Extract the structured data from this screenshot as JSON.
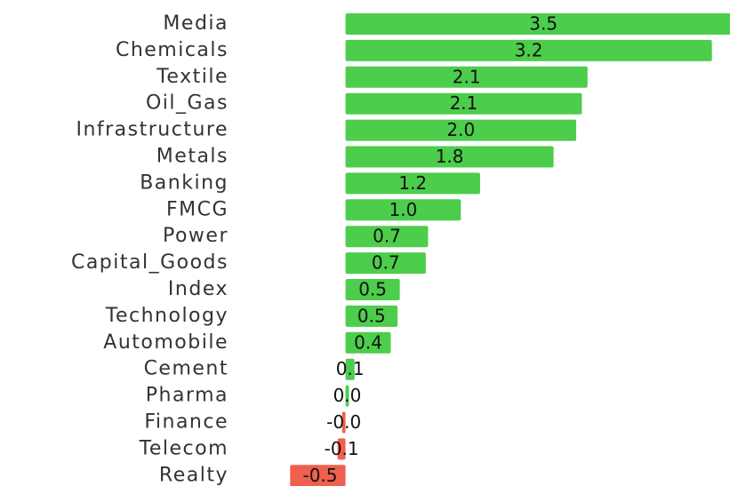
{
  "chart_data": {
    "type": "barh",
    "categories": [
      "Media",
      "Chemicals",
      "Textile",
      "Oil_Gas",
      "Infrastructure",
      "Metals",
      "Banking",
      "FMCG",
      "Power",
      "Capital_Goods",
      "Index",
      "Technology",
      "Automobile",
      "Cement",
      "Pharma",
      "Finance",
      "Telecom",
      "Realty"
    ],
    "values": [
      3.5,
      3.24,
      2.14,
      2.09,
      2.04,
      1.84,
      1.19,
      1.02,
      0.73,
      0.71,
      0.48,
      0.46,
      0.4,
      0.08,
      0.03,
      -0.03,
      -0.07,
      -0.49
    ],
    "value_labels": [
      "3.5",
      "3.2",
      "2.1",
      "2.1",
      "2.0",
      "1.8",
      "1.2",
      "1.0",
      "0.7",
      "0.7",
      "0.5",
      "0.5",
      "0.4",
      "0.1",
      "0.0",
      "-0.0",
      "-0.1",
      "-0.5"
    ],
    "xlim": [
      -0.5,
      3.4
    ],
    "positive_color": "#4ccd4c",
    "negative_color": "#f0604e"
  }
}
